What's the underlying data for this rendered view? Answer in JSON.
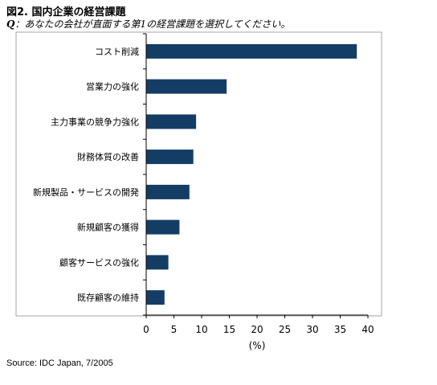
{
  "figure": {
    "title": "図2. 国内企業の経営課題",
    "question_prefix": "Q",
    "question_text": "：あなたの会社が直面する第1の経営課題を選択してください。",
    "source": "Source: IDC Japan, 7/2005"
  },
  "colors": {
    "bar": "#143d66",
    "axis": "#000000",
    "frame": "#a6a6a6"
  },
  "chart_data": {
    "type": "bar",
    "orientation": "horizontal",
    "categories": [
      "コスト削減",
      "営業力の強化",
      "主力事業の競争力強化",
      "財務体質の改善",
      "新規製品・サービスの開発",
      "新規顧客の獲得",
      "顧客サービスの強化",
      "既存顧客の維持"
    ],
    "values": [
      38,
      14.5,
      9,
      8.5,
      7.8,
      6,
      4,
      3.3
    ],
    "xlim": [
      0,
      40
    ],
    "xticks": [
      0,
      5,
      10,
      15,
      20,
      25,
      30,
      35,
      40
    ],
    "xlabel": "(%)",
    "grid": false,
    "legend": "none"
  }
}
